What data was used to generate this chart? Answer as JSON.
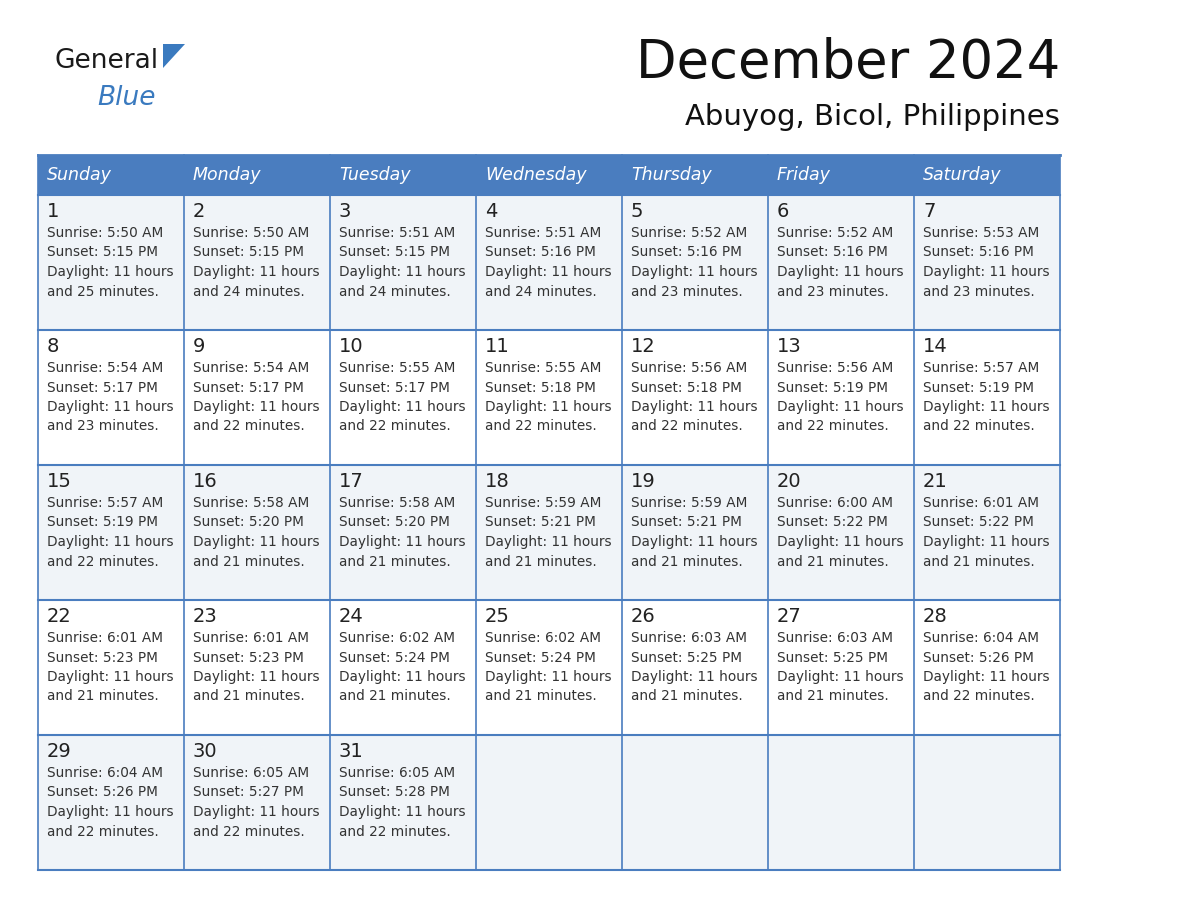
{
  "title": "December 2024",
  "subtitle": "Abuyog, Bicol, Philippines",
  "days_of_week": [
    "Sunday",
    "Monday",
    "Tuesday",
    "Wednesday",
    "Thursday",
    "Friday",
    "Saturday"
  ],
  "header_bg": "#4a7dbf",
  "header_text": "#FFFFFF",
  "cell_bg_light": "#f0f4f8",
  "cell_bg_white": "#FFFFFF",
  "border_color": "#4a7dbf",
  "day_num_color": "#222222",
  "cell_text_color": "#333333",
  "title_color": "#111111",
  "subtitle_color": "#111111",
  "calendar": [
    [
      {
        "day": 1,
        "sunrise": "5:50 AM",
        "sunset": "5:15 PM",
        "daylight_extra": "25 minutes."
      },
      {
        "day": 2,
        "sunrise": "5:50 AM",
        "sunset": "5:15 PM",
        "daylight_extra": "24 minutes."
      },
      {
        "day": 3,
        "sunrise": "5:51 AM",
        "sunset": "5:15 PM",
        "daylight_extra": "24 minutes."
      },
      {
        "day": 4,
        "sunrise": "5:51 AM",
        "sunset": "5:16 PM",
        "daylight_extra": "24 minutes."
      },
      {
        "day": 5,
        "sunrise": "5:52 AM",
        "sunset": "5:16 PM",
        "daylight_extra": "23 minutes."
      },
      {
        "day": 6,
        "sunrise": "5:52 AM",
        "sunset": "5:16 PM",
        "daylight_extra": "23 minutes."
      },
      {
        "day": 7,
        "sunrise": "5:53 AM",
        "sunset": "5:16 PM",
        "daylight_extra": "23 minutes."
      }
    ],
    [
      {
        "day": 8,
        "sunrise": "5:54 AM",
        "sunset": "5:17 PM",
        "daylight_extra": "23 minutes."
      },
      {
        "day": 9,
        "sunrise": "5:54 AM",
        "sunset": "5:17 PM",
        "daylight_extra": "22 minutes."
      },
      {
        "day": 10,
        "sunrise": "5:55 AM",
        "sunset": "5:17 PM",
        "daylight_extra": "22 minutes."
      },
      {
        "day": 11,
        "sunrise": "5:55 AM",
        "sunset": "5:18 PM",
        "daylight_extra": "22 minutes."
      },
      {
        "day": 12,
        "sunrise": "5:56 AM",
        "sunset": "5:18 PM",
        "daylight_extra": "22 minutes."
      },
      {
        "day": 13,
        "sunrise": "5:56 AM",
        "sunset": "5:19 PM",
        "daylight_extra": "22 minutes."
      },
      {
        "day": 14,
        "sunrise": "5:57 AM",
        "sunset": "5:19 PM",
        "daylight_extra": "22 minutes."
      }
    ],
    [
      {
        "day": 15,
        "sunrise": "5:57 AM",
        "sunset": "5:19 PM",
        "daylight_extra": "22 minutes."
      },
      {
        "day": 16,
        "sunrise": "5:58 AM",
        "sunset": "5:20 PM",
        "daylight_extra": "21 minutes."
      },
      {
        "day": 17,
        "sunrise": "5:58 AM",
        "sunset": "5:20 PM",
        "daylight_extra": "21 minutes."
      },
      {
        "day": 18,
        "sunrise": "5:59 AM",
        "sunset": "5:21 PM",
        "daylight_extra": "21 minutes."
      },
      {
        "day": 19,
        "sunrise": "5:59 AM",
        "sunset": "5:21 PM",
        "daylight_extra": "21 minutes."
      },
      {
        "day": 20,
        "sunrise": "6:00 AM",
        "sunset": "5:22 PM",
        "daylight_extra": "21 minutes."
      },
      {
        "day": 21,
        "sunrise": "6:01 AM",
        "sunset": "5:22 PM",
        "daylight_extra": "21 minutes."
      }
    ],
    [
      {
        "day": 22,
        "sunrise": "6:01 AM",
        "sunset": "5:23 PM",
        "daylight_extra": "21 minutes."
      },
      {
        "day": 23,
        "sunrise": "6:01 AM",
        "sunset": "5:23 PM",
        "daylight_extra": "21 minutes."
      },
      {
        "day": 24,
        "sunrise": "6:02 AM",
        "sunset": "5:24 PM",
        "daylight_extra": "21 minutes."
      },
      {
        "day": 25,
        "sunrise": "6:02 AM",
        "sunset": "5:24 PM",
        "daylight_extra": "21 minutes."
      },
      {
        "day": 26,
        "sunrise": "6:03 AM",
        "sunset": "5:25 PM",
        "daylight_extra": "21 minutes."
      },
      {
        "day": 27,
        "sunrise": "6:03 AM",
        "sunset": "5:25 PM",
        "daylight_extra": "21 minutes."
      },
      {
        "day": 28,
        "sunrise": "6:04 AM",
        "sunset": "5:26 PM",
        "daylight_extra": "22 minutes."
      }
    ],
    [
      {
        "day": 29,
        "sunrise": "6:04 AM",
        "sunset": "5:26 PM",
        "daylight_extra": "22 minutes."
      },
      {
        "day": 30,
        "sunrise": "6:05 AM",
        "sunset": "5:27 PM",
        "daylight_extra": "22 minutes."
      },
      {
        "day": 31,
        "sunrise": "6:05 AM",
        "sunset": "5:28 PM",
        "daylight_extra": "22 minutes."
      },
      null,
      null,
      null,
      null
    ]
  ],
  "logo_general_color": "#1a1a1a",
  "logo_blue_color": "#3a7abf",
  "logo_triangle_color": "#3a7abf"
}
